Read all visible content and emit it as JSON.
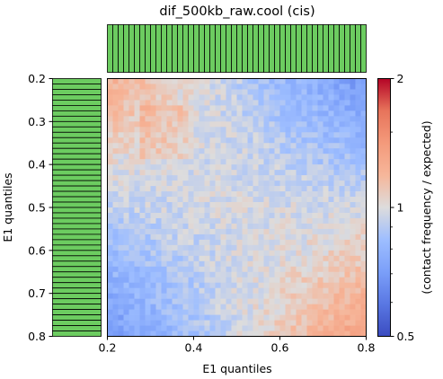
{
  "chart_data": {
    "type": "heatmap",
    "title": "dif_500kb_raw.cool (cis)",
    "xlabel": "E1 quantiles",
    "ylabel": "E1 quantiles",
    "xlim": [
      0.2,
      0.8
    ],
    "ylim": [
      0.2,
      0.8
    ],
    "x_ticks": [
      "0.2",
      "0.4",
      "0.6",
      "0.8"
    ],
    "y_ticks": [
      "0.2",
      "0.3",
      "0.4",
      "0.5",
      "0.6",
      "0.7",
      "0.8"
    ],
    "grid_size": 48,
    "colorbar": {
      "label": "(contact frequency / expected)",
      "scale": "log",
      "range": [
        0.5,
        2
      ],
      "ticks": [
        "0.5",
        "1",
        "2"
      ],
      "colormap": "coolwarm"
    },
    "marginal_bars": {
      "count": 48,
      "color": "#6ccc60"
    },
    "pattern": {
      "description": "log2 enrichment: positive near diagonal corners (low-low, high-high), negative off-diagonal corners",
      "low_low_log2": 0.32,
      "high_high_log2": 0.45,
      "low_high_log2": -0.55,
      "center_log2": 0.0
    }
  }
}
